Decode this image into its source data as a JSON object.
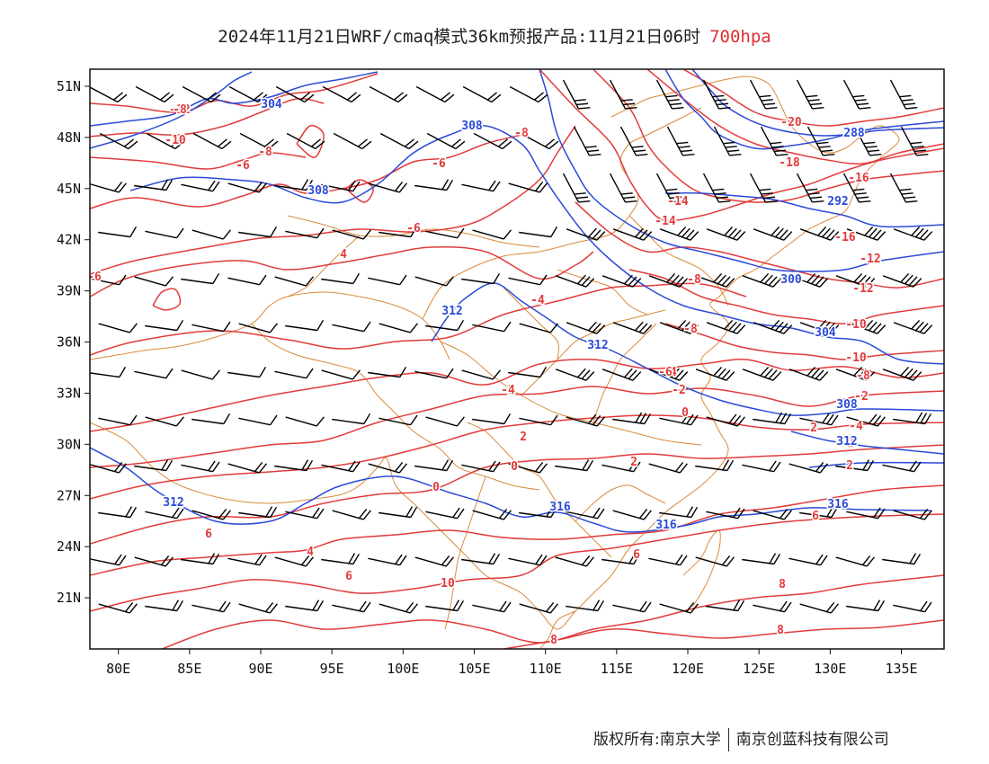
{
  "title": {
    "main": "2024年11月21日WRF/cmaq模式36km预报产品:11月21日06时",
    "level": "700hpa"
  },
  "map": {
    "lon_range": [
      78,
      138
    ],
    "lat_range": [
      18,
      52
    ],
    "lon_ticks": [
      "80E",
      "85E",
      "90E",
      "95E",
      "100E",
      "105E",
      "110E",
      "115E",
      "120E",
      "125E",
      "130E",
      "135E"
    ],
    "lat_ticks": [
      "51N",
      "48N",
      "45N",
      "42N",
      "39N",
      "36N",
      "33N",
      "30N",
      "27N",
      "24N",
      "21N"
    ],
    "colors": {
      "temperature": "#e23b3b",
      "geopotential": "#2a4ad8",
      "boundary": "#d98a3a",
      "barb": "#000000"
    },
    "temperature_labels": [
      "-12",
      "-10",
      "-8",
      "-8",
      "-6",
      "-6",
      "-6",
      "-4",
      "-2",
      "-2",
      "-2",
      "-2",
      "-4",
      "-8",
      "-8",
      "0",
      "0",
      "2",
      "2",
      "2",
      "2",
      "4",
      "4",
      "6",
      "6",
      "6",
      "6",
      "8",
      "8",
      "8",
      "10",
      "-20",
      "-18",
      "-16",
      "-16",
      "-14",
      "-14",
      "-12",
      "-12",
      "-10",
      "-10",
      "-8",
      "-6",
      "-4",
      "0",
      "-4",
      "-6",
      "-8"
    ],
    "geopotential_labels": [
      "304",
      "308",
      "308",
      "312",
      "312",
      "312",
      "316",
      "316",
      "300",
      "304",
      "308",
      "312",
      "316",
      "288",
      "292",
      "300"
    ]
  },
  "footer": {
    "copyright": "版权所有:南京大学",
    "company": "南京创蓝科技有限公司"
  }
}
